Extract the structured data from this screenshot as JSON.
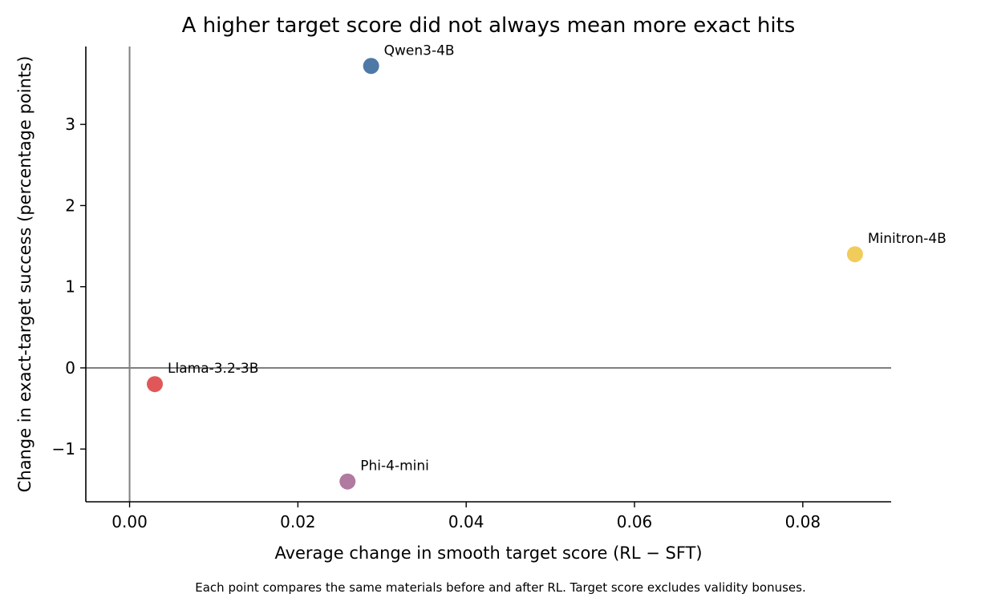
{
  "chart_data": {
    "type": "scatter",
    "title": "A higher target score did not always mean more exact hits",
    "xlabel": "Average change in smooth target score (RL − SFT)",
    "ylabel": "Change in exact-target success (percentage points)",
    "caption": "Each point compares the same materials before and after RL. Target score excludes validity bonuses.",
    "xlim": [
      -0.0052,
      0.0905
    ],
    "ylim": [
      -1.65,
      3.96
    ],
    "x_ticks": [
      {
        "value": 0.0,
        "label": "0.00"
      },
      {
        "value": 0.02,
        "label": "0.02"
      },
      {
        "value": 0.04,
        "label": "0.04"
      },
      {
        "value": 0.06,
        "label": "0.06"
      },
      {
        "value": 0.08,
        "label": "0.08"
      }
    ],
    "y_ticks": [
      {
        "value": -1,
        "label": "−1"
      },
      {
        "value": 0,
        "label": "0"
      },
      {
        "value": 1,
        "label": "1"
      },
      {
        "value": 2,
        "label": "2"
      },
      {
        "value": 3,
        "label": "3"
      }
    ],
    "reference_lines": {
      "x": 0,
      "y": 0,
      "color": "#808080"
    },
    "grid": false,
    "points": [
      {
        "label": "Qwen3-4B",
        "x": 0.0287,
        "y": 3.72,
        "color": "#4e79a7"
      },
      {
        "label": "Minitron-4B",
        "x": 0.0862,
        "y": 1.4,
        "color": "#f2cc5a"
      },
      {
        "label": "Llama-3.2-3B",
        "x": 0.003,
        "y": -0.2,
        "color": "#e15759"
      },
      {
        "label": "Phi-4-mini",
        "x": 0.0259,
        "y": -1.4,
        "color": "#b07aa1"
      }
    ]
  }
}
